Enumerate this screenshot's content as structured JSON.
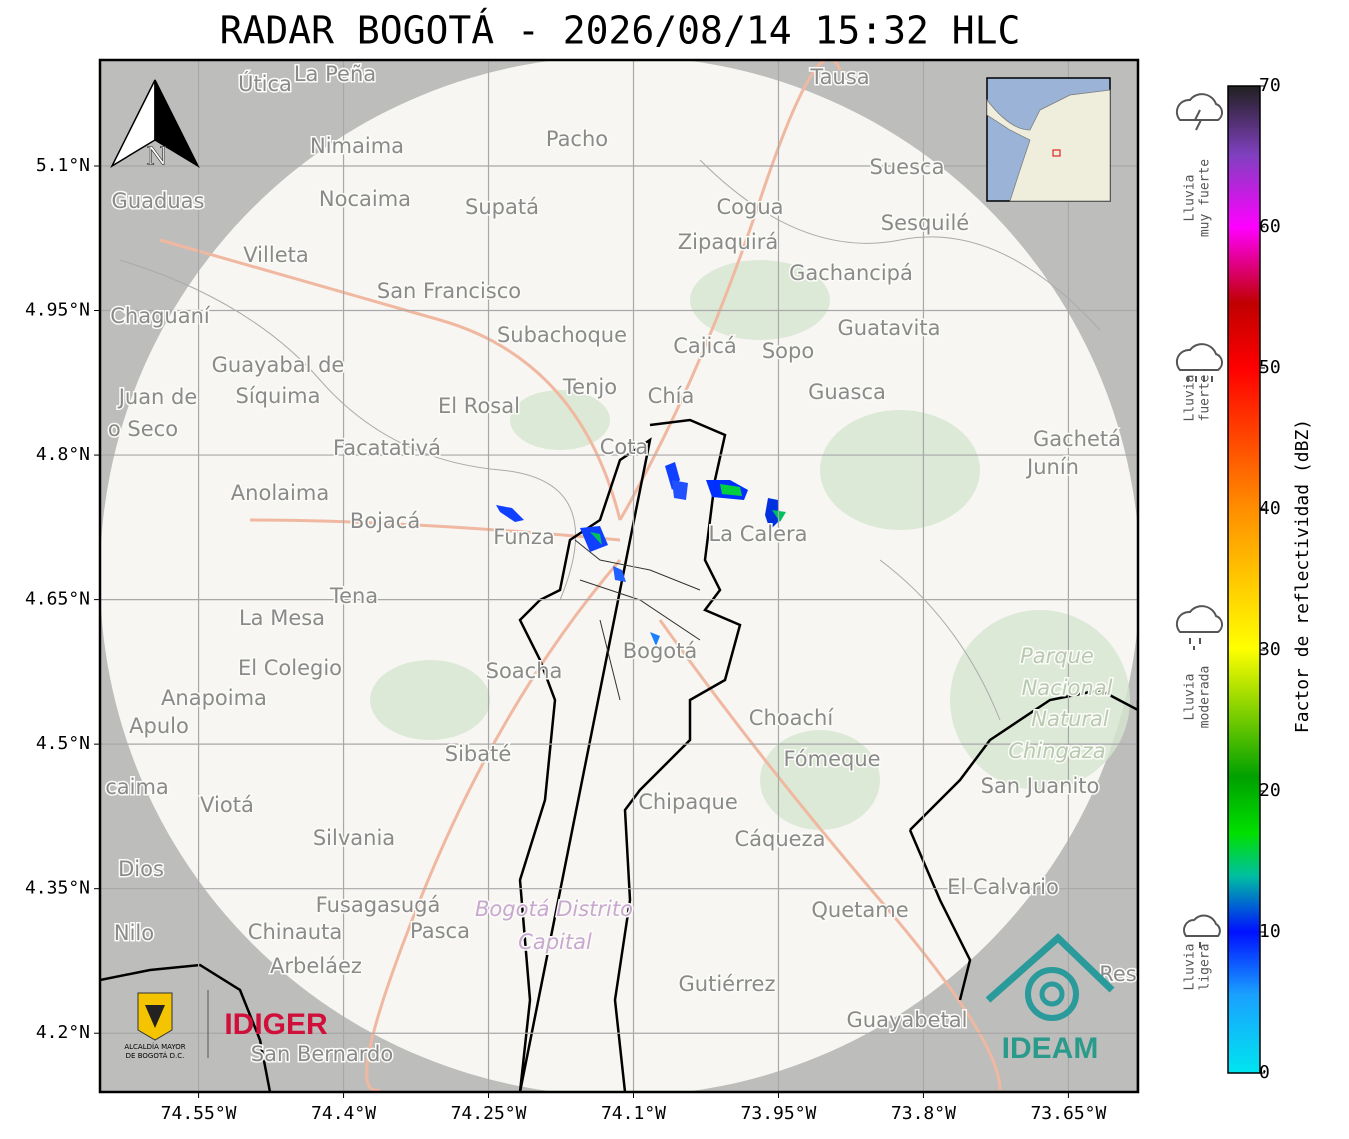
{
  "chart_data": {
    "type": "radar-map",
    "title": "RADAR BOGOTÁ - 2026/08/14 15:32 HLC",
    "xlim": [
      -74.652,
      -73.578
    ],
    "ylim": [
      4.139,
      5.21
    ],
    "xticks": [
      {
        "value": -74.55,
        "label": "74.55°W"
      },
      {
        "value": -74.4,
        "label": "74.4°W"
      },
      {
        "value": -74.25,
        "label": "74.25°W"
      },
      {
        "value": -74.1,
        "label": "74.1°W"
      },
      {
        "value": -73.95,
        "label": "73.95°W"
      },
      {
        "value": -73.8,
        "label": "73.8°W"
      },
      {
        "value": -73.65,
        "label": "73.65°W"
      }
    ],
    "yticks": [
      {
        "value": 5.1,
        "label": "5.1°N"
      },
      {
        "value": 4.95,
        "label": "4.95°N"
      },
      {
        "value": 4.8,
        "label": "4.8°N"
      },
      {
        "value": 4.65,
        "label": "4.65°N"
      },
      {
        "value": 4.5,
        "label": "4.5°N"
      },
      {
        "value": 4.35,
        "label": "4.35°N"
      },
      {
        "value": 4.2,
        "label": "4.2°N"
      }
    ],
    "grid": true,
    "colorbar": {
      "label": "Factor de reflectividad (dBZ)",
      "lim": [
        0,
        70
      ],
      "ticks": [
        0,
        10,
        20,
        30,
        40,
        50,
        60,
        70
      ]
    },
    "legend": [
      [
        "Lluvia",
        "muy fuerte"
      ],
      [
        "Lluvia",
        "fuerte"
      ],
      [
        "Lluvia",
        "moderada"
      ],
      [
        "Lluvia",
        "ligera"
      ]
    ],
    "north": "N",
    "places": [
      "Útica",
      "La Peña",
      "Tausa",
      "Pacho",
      "Nimaima",
      "Guaduas",
      "Nocaima",
      "Supatá",
      "Cogua",
      "Suesca",
      "Sesquilé",
      "Zipaquirá",
      "Villeta",
      "Gachancipá",
      "San Francisco",
      "Chaguaní",
      "Guatavita",
      "Subachoque",
      "Cajicá",
      "Sopo",
      "Guayabal de",
      "Síquima",
      "Tenjo",
      "Chía",
      "Guasca",
      "Juan de",
      "El Rosal",
      "o Seco",
      "Facatativá",
      "Cota",
      "Gachetá",
      "Junín",
      "Anolaima",
      "Bojacá",
      "Funza",
      "La Calera",
      "Tena",
      "La Mesa",
      "Bogotá",
      "El Colegio",
      "Soacha",
      "Anapoima",
      "Apulo",
      "Choachí",
      "Sibaté",
      "Fómeque",
      "San Juanito",
      "caima",
      "Viotá",
      "Chipaque",
      "Silvania",
      "Cáqueza",
      "Dios",
      "El Calvario",
      "Fusagasugá",
      "Quetame",
      "Nilo",
      "Chinauta",
      "Pasca",
      "Arbeláez",
      "Gutiérrez",
      "Guayabetal",
      "San Bernardo",
      "Res"
    ],
    "park": [
      "Parque",
      "Nacional",
      "Natural",
      "Chingaza"
    ],
    "district": [
      "Bogotá Distrito",
      "Capital"
    ],
    "logos": {
      "alcaldia": [
        "ALCALDÍA MAYOR",
        "DE BOGOTÁ D.C."
      ],
      "idiger": "IDIGER",
      "ideam": "IDEAM"
    }
  }
}
